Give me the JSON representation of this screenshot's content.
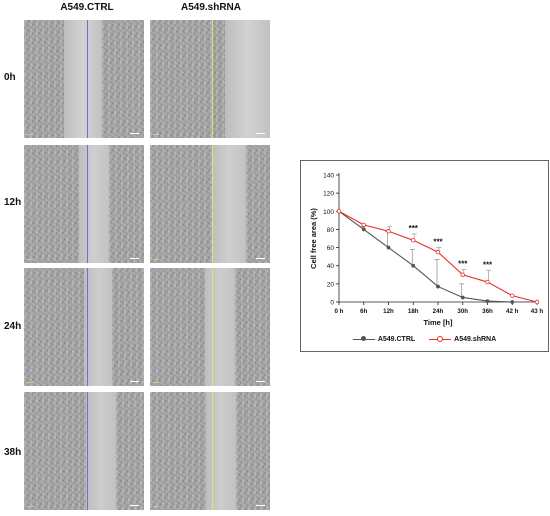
{
  "columns": [
    "A549.CTRL",
    "A549.shRNA"
  ],
  "rows": [
    "0h",
    "12h",
    "24h",
    "38h"
  ],
  "colors": {
    "ctrl_series": "#555555",
    "shrna_series": "#e8302a",
    "ctrl_wound_line": "#6a6fd8",
    "shrna_wound_line": "#e3e36a"
  },
  "chart_data": {
    "type": "line",
    "x": [
      "0 h",
      "6h",
      "12h",
      "18h",
      "24h",
      "30h",
      "36h",
      "42 h",
      "43 h"
    ],
    "xlabel": "Time [h]",
    "ylabel": "Cell free area (%)",
    "ylim": [
      0,
      140
    ],
    "yticks": [
      0,
      20,
      40,
      60,
      80,
      100,
      120,
      140
    ],
    "series": [
      {
        "name": "A549.CTRL",
        "color": "#555555",
        "values": [
          100,
          80,
          60,
          40,
          17,
          5,
          1,
          0,
          0
        ],
        "errors": [
          0,
          3,
          18,
          18,
          30,
          15,
          0,
          0,
          0
        ]
      },
      {
        "name": "A549.shRNA",
        "color": "#e8302a",
        "values": [
          100,
          85,
          78,
          68,
          55,
          30,
          22,
          7,
          0
        ],
        "errors": [
          0,
          0,
          5,
          7,
          5,
          6,
          13,
          0,
          0
        ]
      }
    ],
    "annotations": [
      {
        "x": "18h",
        "text": "***"
      },
      {
        "x": "24h",
        "text": "***"
      },
      {
        "x": "30h",
        "text": "***"
      },
      {
        "x": "36h",
        "text": "***"
      }
    ],
    "grid": false,
    "legend": "bottom"
  }
}
